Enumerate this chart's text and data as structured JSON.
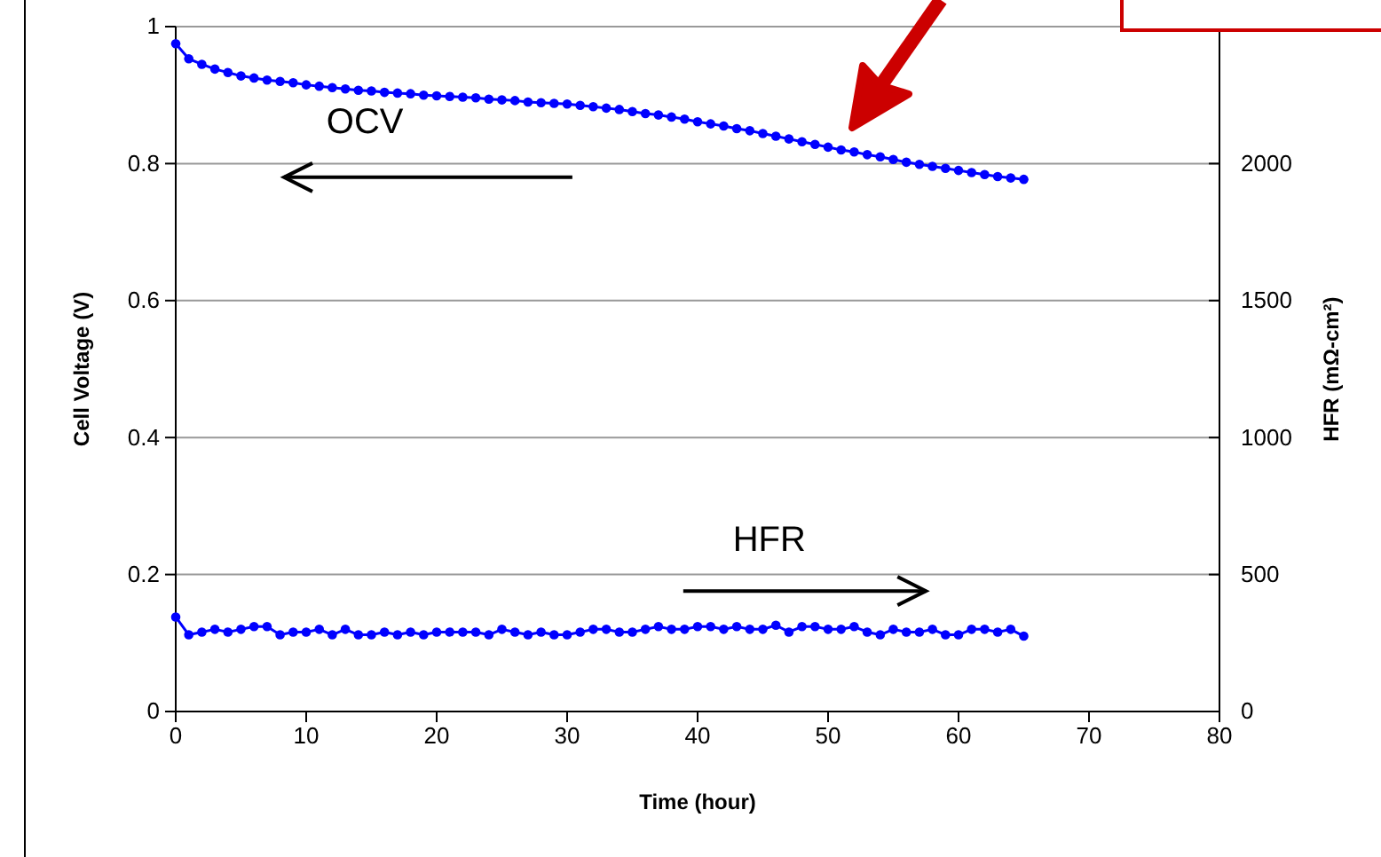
{
  "chart_data": {
    "type": "line",
    "xlabel": "Time (hour)",
    "ylabel": "Cell Voltage (V)",
    "y2label": "HFR (mΩ-cm²)",
    "x": [
      0,
      1,
      2,
      3,
      4,
      5,
      6,
      7,
      8,
      9,
      10,
      11,
      12,
      13,
      14,
      15,
      16,
      17,
      18,
      19,
      20,
      21,
      22,
      23,
      24,
      25,
      26,
      27,
      28,
      29,
      30,
      31,
      32,
      33,
      34,
      35,
      36,
      37,
      38,
      39,
      40,
      41,
      42,
      43,
      44,
      45,
      46,
      47,
      48,
      49,
      50,
      51,
      52,
      53,
      54,
      55,
      56,
      57,
      58,
      59,
      60,
      61,
      62,
      63,
      64,
      65
    ],
    "series": [
      {
        "name": "OCV",
        "color": "#0000ff",
        "values": [
          0.975,
          0.953,
          0.945,
          0.938,
          0.933,
          0.928,
          0.925,
          0.922,
          0.92,
          0.918,
          0.915,
          0.913,
          0.911,
          0.909,
          0.907,
          0.906,
          0.904,
          0.903,
          0.902,
          0.9,
          0.899,
          0.898,
          0.897,
          0.896,
          0.894,
          0.893,
          0.892,
          0.89,
          0.889,
          0.888,
          0.887,
          0.885,
          0.883,
          0.881,
          0.879,
          0.876,
          0.873,
          0.871,
          0.868,
          0.865,
          0.861,
          0.858,
          0.855,
          0.851,
          0.848,
          0.844,
          0.84,
          0.836,
          0.832,
          0.828,
          0.824,
          0.82,
          0.817,
          0.813,
          0.81,
          0.806,
          0.802,
          0.799,
          0.796,
          0.793,
          0.79,
          0.787,
          0.784,
          0.781,
          0.779,
          0.777
        ]
      },
      {
        "name": "HFR",
        "color": "#0000ff",
        "axis": "y2",
        "values": [
          345,
          280,
          290,
          300,
          290,
          300,
          310,
          310,
          280,
          290,
          290,
          300,
          280,
          300,
          280,
          280,
          290,
          280,
          290,
          280,
          290,
          290,
          290,
          290,
          280,
          300,
          290,
          280,
          290,
          280,
          280,
          290,
          300,
          300,
          290,
          290,
          300,
          310,
          300,
          300,
          310,
          310,
          300,
          310,
          300,
          300,
          315,
          290,
          310,
          310,
          300,
          300,
          310,
          290,
          280,
          300,
          290,
          290,
          300,
          280,
          280,
          300,
          300,
          290,
          300,
          275
        ]
      }
    ],
    "xlim": [
      0,
      80
    ],
    "xticks": [
      0,
      10,
      20,
      30,
      40,
      50,
      60,
      70,
      80
    ],
    "ylim": [
      0,
      1
    ],
    "yticks": [
      0,
      0.2,
      0.4,
      0.6,
      0.8,
      1
    ],
    "y2lim": [
      0,
      2500
    ],
    "y2ticks": [
      0,
      500,
      1000,
      1500,
      2000,
      {
        "value": 2500,
        "label": null
      }
    ],
    "grid": "y",
    "marker": "circle",
    "line_style": "solid"
  }
}
